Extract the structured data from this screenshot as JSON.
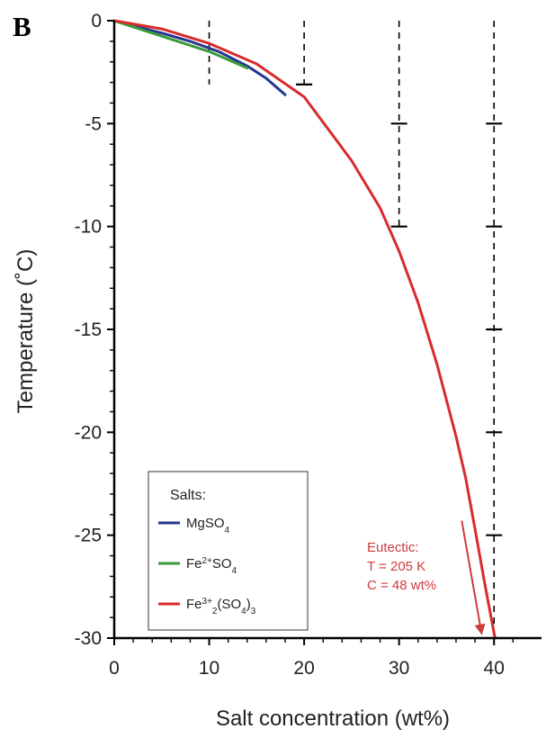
{
  "panel_label": "B",
  "chart_data": {
    "type": "line",
    "title": "",
    "xlabel": "Salt concentration (wt%)",
    "ylabel": "Temperature (˚C)",
    "xlim": [
      0,
      45
    ],
    "ylim": [
      -30,
      0
    ],
    "x_ticks": [
      0,
      10,
      20,
      30,
      40
    ],
    "y_ticks": [
      0,
      -5,
      -10,
      -15,
      -20,
      -25,
      -30
    ],
    "grid": false,
    "legend": {
      "title": "Salts:",
      "position": "bottom-left",
      "entries": [
        {
          "series": 0,
          "label": "MgSO",
          "sub": "4"
        },
        {
          "series": 1,
          "label": "Fe",
          "sup": "2+",
          "rest": "SO",
          "sub": "4"
        },
        {
          "series": 2,
          "label": "Fe",
          "sup": "3+",
          "sub1": "2",
          "mid": "(SO",
          "sub2": "4",
          "end": ")",
          "sub3": "3"
        }
      ]
    },
    "series": [
      {
        "name": "MgSO4",
        "color": "#24358f",
        "x": [
          0,
          2,
          5,
          8,
          11,
          14,
          16,
          18
        ],
        "y": [
          0,
          -0.25,
          -0.6,
          -1.0,
          -1.5,
          -2.2,
          -2.8,
          -3.6
        ]
      },
      {
        "name": "Fe2+SO4",
        "color": "#3a9a3a",
        "x": [
          0,
          2,
          4,
          6,
          8,
          10,
          12,
          14
        ],
        "y": [
          0,
          -0.3,
          -0.6,
          -0.9,
          -1.2,
          -1.5,
          -1.9,
          -2.3
        ]
      },
      {
        "name": "Fe3+2(SO4)3",
        "color": "#d92b2b",
        "x": [
          0,
          5,
          10,
          15,
          20,
          25,
          28,
          30,
          32,
          34,
          36,
          37,
          38,
          39,
          40.1
        ],
        "y": [
          0,
          -0.4,
          -1.1,
          -2.1,
          -3.7,
          -6.8,
          -9.1,
          -11.2,
          -13.7,
          -16.7,
          -20.2,
          -22.2,
          -24.7,
          -27.3,
          -30
        ]
      }
    ],
    "reference_lines": [
      {
        "x": 10,
        "y_from": 0,
        "y_to": -3.1,
        "style": "dashed",
        "color": "#000000"
      },
      {
        "x": 20,
        "y_from": 0,
        "y_to": -3.1,
        "style": "dashed",
        "color": "#000000"
      },
      {
        "x": 30,
        "y_from": 0,
        "y_to": -10,
        "style": "dashed",
        "color": "#000000"
      },
      {
        "x": 40,
        "y_from": 0,
        "y_to": -30,
        "style": "dashed",
        "color": "#000000"
      }
    ],
    "reference_marks": [
      {
        "x": 20,
        "y": -3.1
      },
      {
        "x": 30,
        "y": -5
      },
      {
        "x": 30,
        "y": -10
      },
      {
        "x": 40,
        "y": -5
      },
      {
        "x": 40,
        "y": -10
      },
      {
        "x": 40,
        "y": -15
      },
      {
        "x": 40,
        "y": -20
      },
      {
        "x": 40,
        "y": -25
      }
    ],
    "annotation": {
      "lines": [
        "Eutectic:",
        "T = 205 K",
        "C = 48 wt%"
      ],
      "color": "#cf3b3b",
      "arrow_from": [
        36.6,
        -24.3
      ],
      "arrow_to": [
        38.7,
        -29.8
      ]
    }
  }
}
